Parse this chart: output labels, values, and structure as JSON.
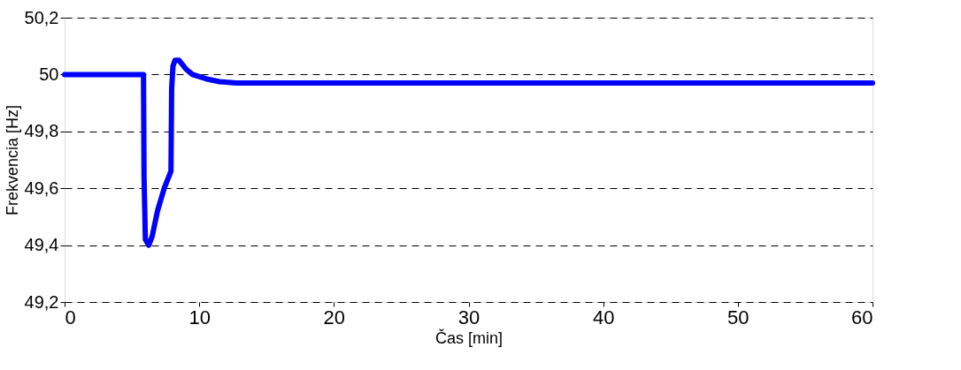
{
  "chart_data": {
    "type": "line",
    "xlabel": "Čas [min]",
    "ylabel": "Frekvencia [Hz]",
    "x": [
      0,
      2,
      4,
      5.86,
      5.9,
      6.0,
      6.25,
      6.5,
      6.9,
      7.4,
      7.9,
      7.95,
      8.05,
      8.2,
      8.5,
      9.0,
      9.5,
      10.5,
      11.5,
      12.8,
      20,
      40,
      60
    ],
    "series": [
      {
        "color": "#0000ff",
        "values": [
          50.0,
          50.0,
          50.0,
          50.0,
          49.64,
          49.42,
          49.4,
          49.43,
          49.52,
          49.6,
          49.66,
          49.95,
          50.03,
          50.05,
          50.05,
          50.02,
          50.0,
          49.985,
          49.975,
          49.97,
          49.97,
          49.97,
          49.97
        ]
      }
    ],
    "xlim": [
      0,
      60
    ],
    "xticks": [
      0,
      10,
      20,
      30,
      40,
      50,
      60
    ],
    "ylim": [
      49.2,
      50.2
    ],
    "yticks": [
      {
        "value": 49.2,
        "label": "49,2"
      },
      {
        "value": 49.4,
        "label": "49,4"
      },
      {
        "value": 49.6,
        "label": "49,6"
      },
      {
        "value": 49.8,
        "label": "49,8"
      },
      {
        "value": 50,
        "label": "50"
      },
      {
        "value": 50.2,
        "label": "50,2"
      }
    ],
    "grid": "y",
    "line_style": "solid",
    "marker": "none"
  }
}
